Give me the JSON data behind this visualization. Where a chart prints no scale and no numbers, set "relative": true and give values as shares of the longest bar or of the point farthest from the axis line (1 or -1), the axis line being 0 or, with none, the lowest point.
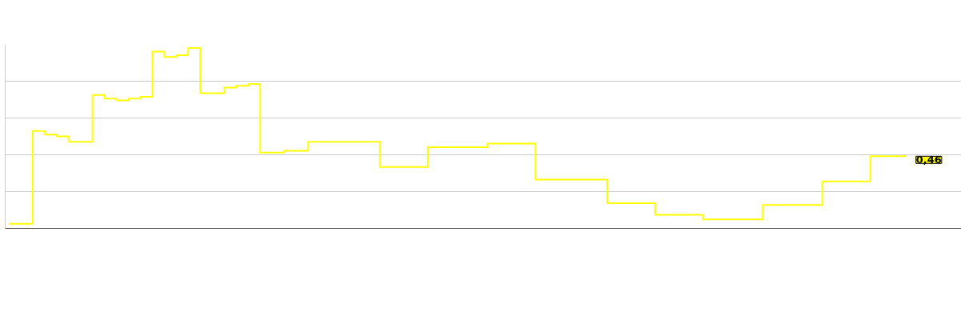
{
  "chart_data": {
    "type": "step",
    "relative": true,
    "grid": "y",
    "annotations": [
      "0,46"
    ],
    "categories": [
      null,
      null,
      null,
      null,
      null,
      null,
      null,
      null,
      null,
      null,
      null,
      null,
      null,
      null,
      null,
      null,
      null,
      null,
      null,
      null,
      null,
      null,
      null,
      null,
      null,
      null,
      null,
      null,
      null,
      null,
      null,
      null,
      null,
      null,
      null,
      null,
      null,
      null,
      null,
      null,
      null,
      null,
      null,
      null,
      null,
      null,
      null,
      null,
      null,
      null,
      null,
      null,
      null,
      null,
      null,
      null,
      null,
      null,
      null,
      null,
      null,
      null,
      null,
      null,
      null,
      null,
      null,
      null,
      null,
      null,
      null,
      null,
      null,
      null,
      null,
      null
    ],
    "series": [
      {
        "color": "#ffff00",
        "values": [
          0.026,
          0.026,
          0.54,
          0.52,
          0.51,
          0.48,
          0.48,
          0.74,
          0.72,
          0.71,
          0.72,
          0.73,
          0.98,
          0.95,
          0.96,
          1.0,
          0.75,
          0.75,
          0.78,
          0.79,
          0.8,
          0.42,
          0.42,
          0.43,
          0.43,
          0.48,
          0.48,
          0.48,
          0.48,
          0.48,
          0.48,
          0.34,
          0.34,
          0.34,
          0.34,
          0.45,
          0.45,
          0.45,
          0.45,
          0.45,
          0.47,
          0.47,
          0.47,
          0.47,
          0.27,
          0.27,
          0.27,
          0.27,
          0.27,
          0.27,
          0.14,
          0.14,
          0.14,
          0.14,
          0.075,
          0.075,
          0.075,
          0.075,
          0.05,
          0.05,
          0.05,
          0.05,
          0.05,
          0.13,
          0.13,
          0.13,
          0.13,
          0.13,
          0.26,
          0.26,
          0.26,
          0.26,
          0.4,
          0.4,
          0.4,
          0.4
        ]
      }
    ]
  }
}
